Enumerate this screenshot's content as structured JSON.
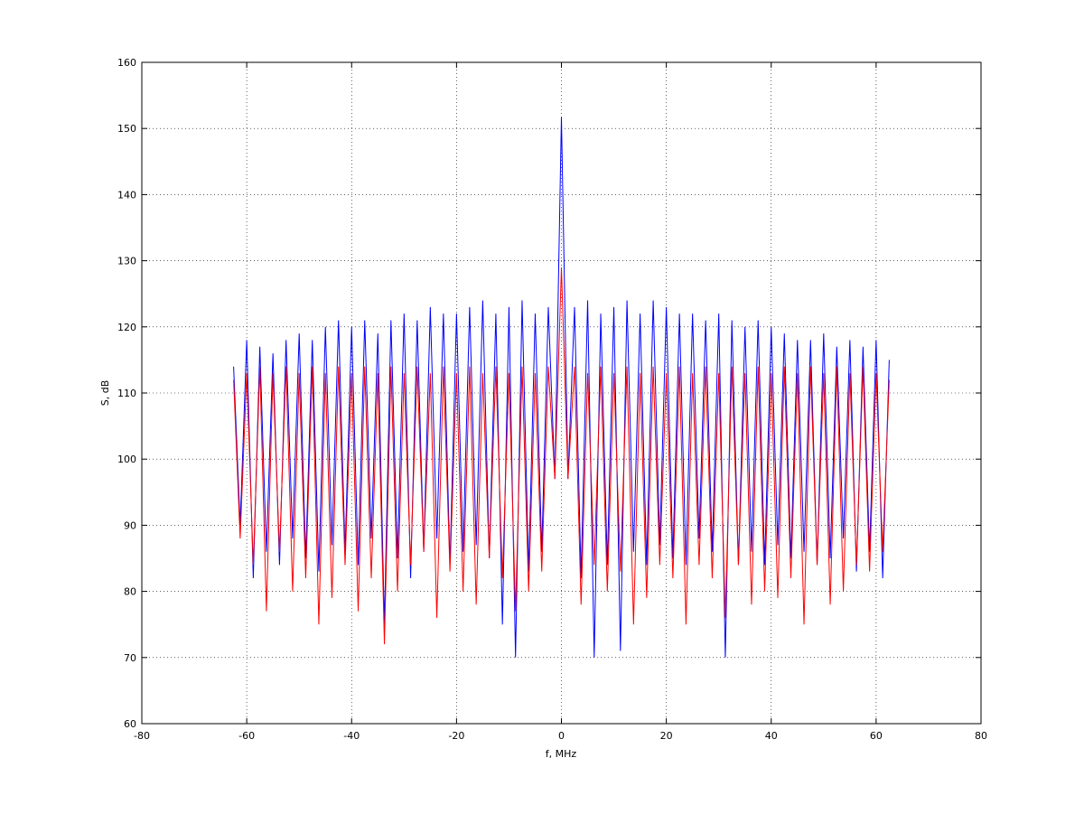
{
  "chart_data": {
    "type": "line",
    "xlabel": "f, MHz",
    "ylabel": "S, dB",
    "x": [
      -62.5,
      -61.25,
      -60,
      -58.75,
      -57.5,
      -56.25,
      -55,
      -53.75,
      -52.5,
      -51.25,
      -50,
      -48.75,
      -47.5,
      -46.25,
      -45,
      -43.75,
      -42.5,
      -41.25,
      -40,
      -38.75,
      -37.5,
      -36.25,
      -35,
      -33.75,
      -32.5,
      -31.25,
      -30,
      -28.75,
      -27.5,
      -26.25,
      -25,
      -23.75,
      -22.5,
      -21.25,
      -20,
      -18.75,
      -17.5,
      -16.25,
      -15,
      -13.75,
      -12.5,
      -11.25,
      -10,
      -8.75,
      -7.5,
      -6.25,
      -5,
      -3.75,
      -2.5,
      -1.25,
      0,
      1.25,
      2.5,
      3.75,
      5,
      6.25,
      7.5,
      8.75,
      10,
      11.25,
      12.5,
      13.75,
      15,
      16.25,
      17.5,
      18.75,
      20,
      21.25,
      22.5,
      23.75,
      25,
      26.25,
      27.5,
      28.75,
      30,
      31.25,
      32.5,
      33.75,
      35,
      36.25,
      37.5,
      38.75,
      40,
      41.25,
      42.5,
      43.75,
      45,
      46.25,
      47.5,
      48.75,
      50,
      51.25,
      52.5,
      53.75,
      55,
      56.25,
      57.5,
      58.75,
      60,
      61.25,
      62.5
    ],
    "series": [
      {
        "color": "#0000ff",
        "values": [
          114,
          90,
          118,
          82,
          117,
          86,
          116,
          84,
          118,
          88,
          119,
          85,
          118,
          83,
          120,
          87,
          121,
          86,
          120,
          84,
          121,
          88,
          119,
          75,
          121,
          85,
          122,
          82,
          121,
          86,
          123,
          88,
          122,
          84,
          122,
          86,
          123,
          87,
          124,
          85,
          122,
          75,
          123,
          70,
          124,
          83,
          122,
          86,
          123,
          97,
          151.7,
          97,
          123,
          82,
          124,
          70,
          122,
          84,
          123,
          71,
          124,
          86,
          122,
          84,
          124,
          87,
          123,
          85,
          122,
          84,
          122,
          88,
          121,
          86,
          122,
          70,
          121,
          84,
          120,
          86,
          121,
          84,
          120,
          87,
          119,
          85,
          118,
          86,
          118,
          84,
          119,
          85,
          117,
          88,
          118,
          83,
          117,
          86,
          118,
          82,
          115
        ]
      },
      {
        "color": "#ff0000",
        "values": [
          112,
          88,
          113,
          84,
          114,
          77,
          113,
          86,
          114,
          80,
          113,
          82,
          114,
          75,
          113,
          79,
          114,
          84,
          113,
          77,
          114,
          82,
          113,
          72,
          114,
          80,
          113,
          84,
          114,
          86,
          113,
          76,
          114,
          83,
          113,
          80,
          114,
          78,
          113,
          85,
          114,
          82,
          113,
          77,
          114,
          80,
          113,
          83,
          114,
          97,
          129,
          97,
          114,
          78,
          113,
          84,
          114,
          80,
          113,
          83,
          114,
          75,
          113,
          79,
          114,
          84,
          113,
          82,
          114,
          75,
          113,
          84,
          114,
          82,
          113,
          76,
          114,
          84,
          113,
          78,
          114,
          80,
          113,
          79,
          114,
          82,
          113,
          75,
          114,
          84,
          113,
          78,
          114,
          80,
          113,
          84,
          114,
          83,
          113,
          86,
          112
        ]
      }
    ],
    "xlim": [
      -80,
      80
    ],
    "xticks": [
      -80,
      -60,
      -40,
      -20,
      0,
      20,
      40,
      60,
      80
    ],
    "ylim": [
      60,
      160
    ],
    "yticks": [
      60,
      70,
      80,
      90,
      100,
      110,
      120,
      130,
      140,
      150,
      160
    ],
    "grid": true
  }
}
